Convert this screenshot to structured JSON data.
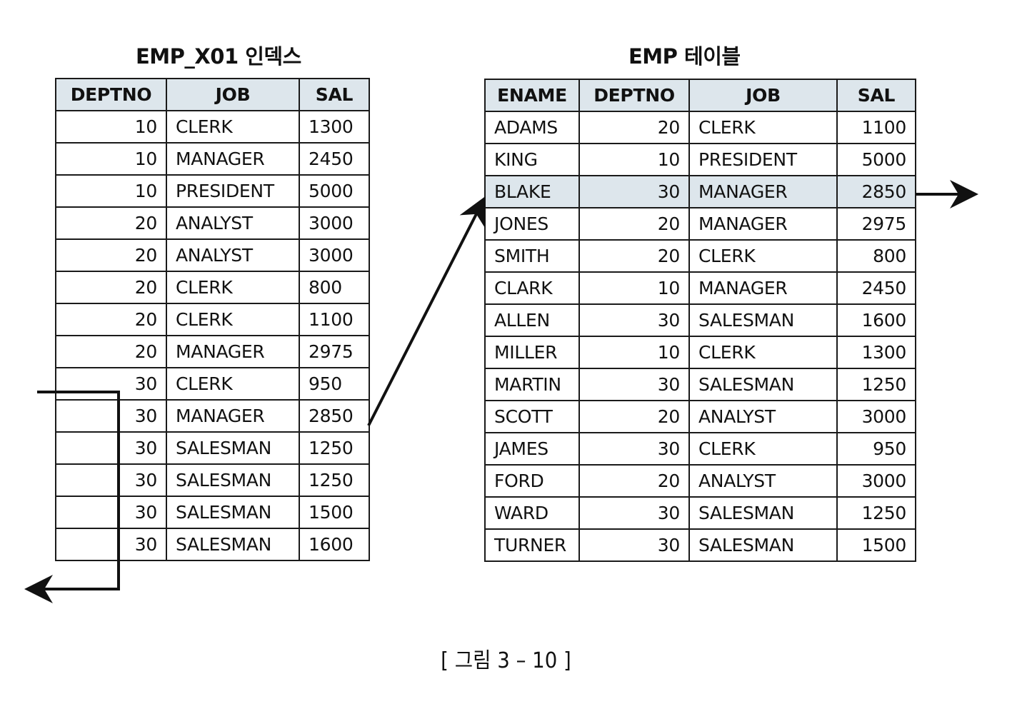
{
  "index": {
    "title": "EMP_X01 인덱스",
    "columns": [
      "DEPTNO",
      "JOB",
      "SAL"
    ],
    "rows": [
      [
        "10",
        "CLERK",
        "1300"
      ],
      [
        "10",
        "MANAGER",
        "2450"
      ],
      [
        "10",
        "PRESIDENT",
        "5000"
      ],
      [
        "20",
        "ANALYST",
        "3000"
      ],
      [
        "20",
        "ANALYST",
        "3000"
      ],
      [
        "20",
        "CLERK",
        "800"
      ],
      [
        "20",
        "CLERK",
        "1100"
      ],
      [
        "20",
        "MANAGER",
        "2975"
      ],
      [
        "30",
        "CLERK",
        "950"
      ],
      [
        "30",
        "MANAGER",
        "2850"
      ],
      [
        "30",
        "SALESMAN",
        "1250"
      ],
      [
        "30",
        "SALESMAN",
        "1250"
      ],
      [
        "30",
        "SALESMAN",
        "1500"
      ],
      [
        "30",
        "SALESMAN",
        "1600"
      ]
    ]
  },
  "emp": {
    "title": "EMP 테이블",
    "columns": [
      "ENAME",
      "DEPTNO",
      "JOB",
      "SAL"
    ],
    "highlight_row": 2,
    "rows": [
      [
        "ADAMS",
        "20",
        "CLERK",
        "1100"
      ],
      [
        "KING",
        "10",
        "PRESIDENT",
        "5000"
      ],
      [
        "BLAKE",
        "30",
        "MANAGER",
        "2850"
      ],
      [
        "JONES",
        "20",
        "MANAGER",
        "2975"
      ],
      [
        "SMITH",
        "20",
        "CLERK",
        "800"
      ],
      [
        "CLARK",
        "10",
        "MANAGER",
        "2450"
      ],
      [
        "ALLEN",
        "30",
        "SALESMAN",
        "1600"
      ],
      [
        "MILLER",
        "10",
        "CLERK",
        "1300"
      ],
      [
        "MARTIN",
        "30",
        "SALESMAN",
        "1250"
      ],
      [
        "SCOTT",
        "20",
        "ANALYST",
        "3000"
      ],
      [
        "JAMES",
        "30",
        "CLERK",
        "950"
      ],
      [
        "FORD",
        "20",
        "ANALYST",
        "3000"
      ],
      [
        "WARD",
        "30",
        "SALESMAN",
        "1250"
      ],
      [
        "TURNER",
        "30",
        "SALESMAN",
        "1500"
      ]
    ]
  },
  "caption": "[ 그림 3 – 10 ]",
  "colors": {
    "header_fill": "#dde6ec",
    "highlight_fill": "#dde6ec",
    "line": "#111111"
  }
}
